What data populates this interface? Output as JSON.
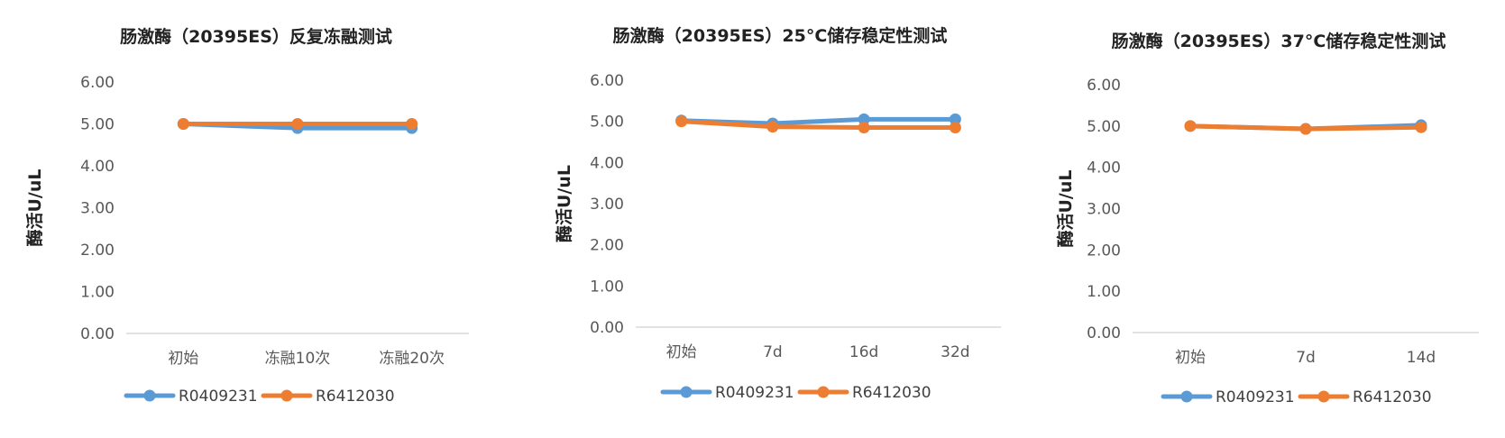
{
  "chart_data": [
    {
      "type": "line",
      "title": "肠激酶（20395ES）反复冻融测试",
      "ylabel": "酶活U/uL",
      "xlabel": "",
      "categories": [
        "初始",
        "冻融10次",
        "冻融20次"
      ],
      "ylim": [
        0,
        6
      ],
      "yticks": [
        "0.00",
        "1.00",
        "2.00",
        "3.00",
        "4.00",
        "5.00",
        "6.00"
      ],
      "grid": false,
      "legend": "bottom",
      "series": [
        {
          "name": "R0409231",
          "color": "#5B9BD5",
          "values": [
            5.0,
            4.9,
            4.9
          ]
        },
        {
          "name": "R6412030",
          "color": "#ED7D31",
          "values": [
            5.0,
            5.0,
            5.0
          ]
        }
      ]
    },
    {
      "type": "line",
      "title": "肠激酶（20395ES）25°C储存稳定性测试",
      "ylabel": "酶活U/uL",
      "xlabel": "",
      "categories": [
        "初始",
        "7d",
        "16d",
        "32d"
      ],
      "ylim": [
        0,
        6
      ],
      "yticks": [
        "0.00",
        "1.00",
        "2.00",
        "3.00",
        "4.00",
        "5.00",
        "6.00"
      ],
      "grid": false,
      "legend": "bottom",
      "series": [
        {
          "name": "R0409231",
          "color": "#5B9BD5",
          "values": [
            5.02,
            4.95,
            5.05,
            5.05
          ]
        },
        {
          "name": "R6412030",
          "color": "#ED7D31",
          "values": [
            5.0,
            4.87,
            4.85,
            4.85
          ]
        }
      ]
    },
    {
      "type": "line",
      "title": "肠激酶（20395ES）37°C储存稳定性测试",
      "ylabel": "酶活U/uL",
      "xlabel": "",
      "categories": [
        "初始",
        "7d",
        "14d"
      ],
      "ylim": [
        0,
        6
      ],
      "yticks": [
        "0.00",
        "1.00",
        "2.00",
        "3.00",
        "4.00",
        "5.00",
        "6.00"
      ],
      "grid": false,
      "legend": "bottom",
      "series": [
        {
          "name": "R0409231",
          "color": "#5B9BD5",
          "values": [
            5.0,
            4.93,
            5.02
          ]
        },
        {
          "name": "R6412030",
          "color": "#ED7D31",
          "values": [
            5.0,
            4.93,
            4.97
          ]
        }
      ]
    }
  ]
}
